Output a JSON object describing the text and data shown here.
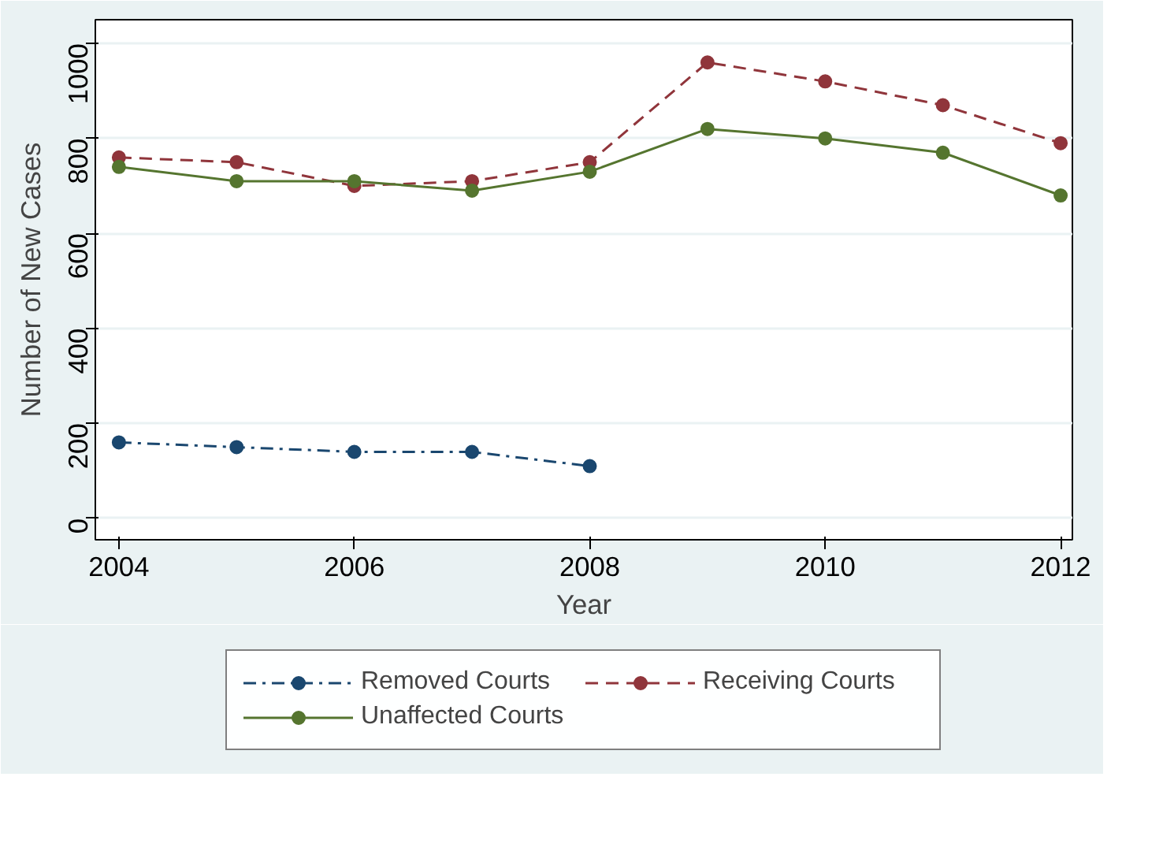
{
  "chart_data": {
    "type": "line",
    "xlabel": "Year",
    "ylabel": "Number of New Cases",
    "x": [
      2004,
      2005,
      2006,
      2007,
      2008,
      2009,
      2010,
      2011,
      2012
    ],
    "series": [
      {
        "name": "Removed Courts",
        "color": "#1a476f",
        "line_style": "dashdot",
        "values": [
          160,
          150,
          140,
          140,
          110,
          null,
          null,
          null,
          null
        ]
      },
      {
        "name": "Receiving Courts",
        "color": "#90353b",
        "line_style": "dashed",
        "values": [
          760,
          750,
          700,
          710,
          750,
          960,
          920,
          870,
          790
        ]
      },
      {
        "name": "Unaffected Courts",
        "color": "#55752f",
        "line_style": "solid",
        "values": [
          740,
          710,
          710,
          690,
          730,
          820,
          800,
          770,
          680
        ]
      }
    ],
    "xlim": [
      2003.8,
      2012.1
    ],
    "ylim": [
      -45,
      1050
    ],
    "xticks": [
      2004,
      2006,
      2008,
      2010,
      2012
    ],
    "yticks": [
      0,
      200,
      400,
      600,
      800,
      1000
    ],
    "grid": "y",
    "legend": "bottom",
    "marker": "circle"
  }
}
